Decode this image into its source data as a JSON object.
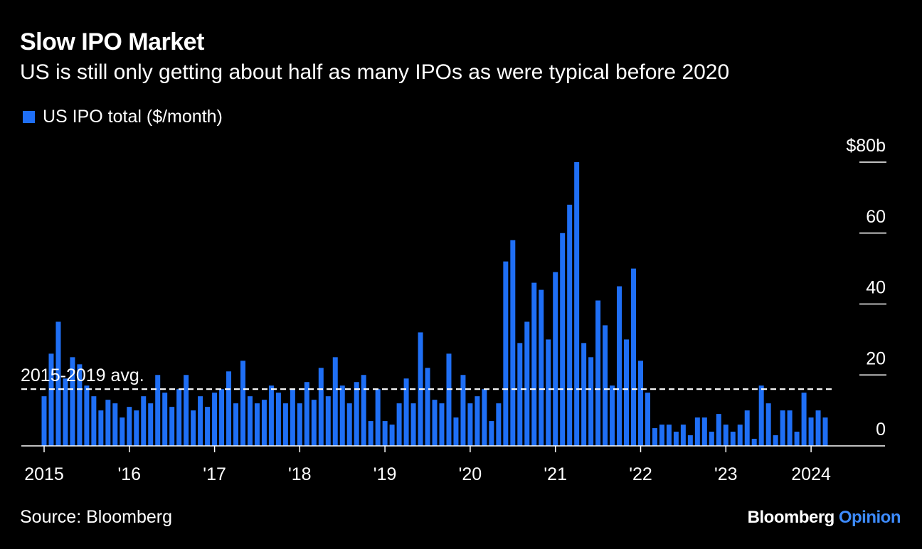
{
  "title": "Slow IPO Market",
  "subtitle": "US is still only getting about half as many IPOs as were typical before 2020",
  "legend": {
    "label": "US IPO total ($/month)"
  },
  "source": "Source: Bloomberg",
  "brand": {
    "name": "Bloomberg",
    "suffix": "Opinion"
  },
  "colors": {
    "background": "#000000",
    "bar": "#1f6ff5",
    "text": "#ffffff",
    "brand_accent": "#3d8bff"
  },
  "chart_data": {
    "type": "bar",
    "series": [
      {
        "name": "US IPO total ($/month)",
        "values": [
          14,
          26,
          35,
          19,
          25,
          23,
          17,
          14,
          10,
          13,
          12,
          8,
          11,
          10,
          14,
          12,
          20,
          15,
          11,
          16,
          20,
          10,
          14,
          11,
          15,
          16,
          21,
          12,
          24,
          14,
          12,
          13,
          17,
          15,
          12,
          16,
          12,
          18,
          13,
          22,
          14,
          25,
          17,
          12,
          18,
          20,
          7,
          16,
          7,
          6,
          12,
          19,
          12,
          32,
          22,
          13,
          12,
          26,
          8,
          20,
          12,
          14,
          16,
          7,
          12,
          52,
          58,
          29,
          35,
          46,
          44,
          30,
          49,
          60,
          68,
          80,
          29,
          25,
          41,
          34,
          17,
          45,
          30,
          50,
          24,
          15,
          5,
          6,
          6,
          4,
          6,
          3,
          8,
          8,
          4,
          9,
          6,
          4,
          6,
          10,
          2,
          17,
          12,
          3,
          10,
          10,
          4,
          15,
          8,
          10,
          8
        ]
      }
    ],
    "x_axis": {
      "ticks": [
        "2015",
        "'16",
        "'17",
        "'18",
        "'19",
        "'20",
        "'21",
        "'22",
        "'23",
        "2024"
      ]
    },
    "y_axis": {
      "ticks": [
        "$80b",
        "60",
        "40",
        "20",
        "0"
      ],
      "ylim": [
        0,
        80
      ]
    },
    "reference_line": {
      "label": "2015-2019 avg.",
      "value": 16
    },
    "grid": false,
    "legend_position": "top-left"
  }
}
